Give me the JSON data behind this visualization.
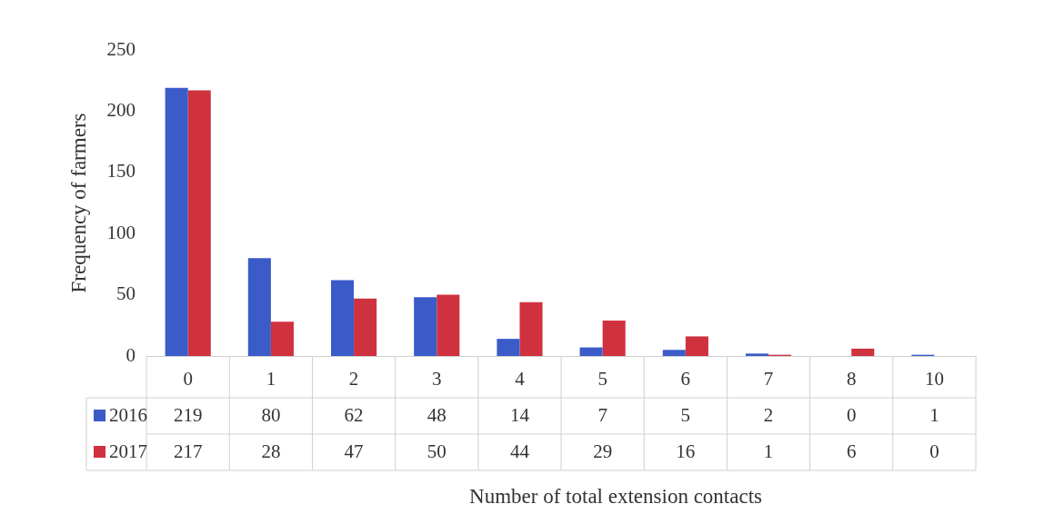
{
  "chart_data": {
    "type": "bar",
    "xlabel": "Number of total extension contacts",
    "ylabel": "Frequency of farmers",
    "categories": [
      "0",
      "1",
      "2",
      "3",
      "4",
      "5",
      "6",
      "7",
      "8",
      "10"
    ],
    "series": [
      {
        "name": "2016",
        "color": "#3b5bc8",
        "values": [
          219,
          80,
          62,
          48,
          14,
          7,
          5,
          2,
          0,
          1
        ]
      },
      {
        "name": "2017",
        "color": "#d0313f",
        "values": [
          217,
          28,
          47,
          50,
          44,
          29,
          16,
          1,
          6,
          0
        ]
      }
    ],
    "ylim": [
      0,
      250
    ],
    "yticks": [
      0,
      50,
      100,
      150,
      200,
      250
    ],
    "grid": false,
    "legend": "bottom",
    "data_labels": true
  }
}
